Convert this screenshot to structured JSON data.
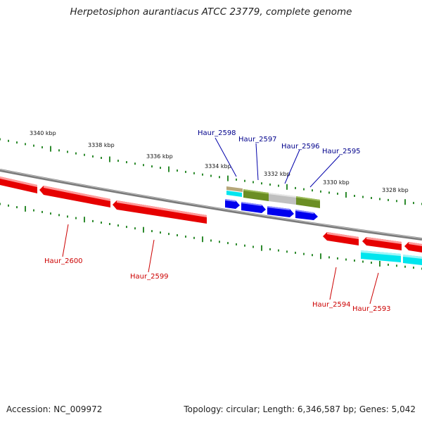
{
  "title": "Herpetosiphon aurantiacus ATCC 23779, complete genome",
  "footer": {
    "accession": "Accession: NC_009972",
    "stats": "Topology: circular; Length: 6,346,587 bp; Genes: 5,042"
  },
  "colors": {
    "backbone": "#7a7a7a",
    "tick": "#2e8b2e",
    "forward_cds": "#e60000",
    "reverse_cds_label": "#cc0000",
    "forward_label": "#00008b",
    "gene_blue": "#0000ee",
    "gene_cyan": "#00e5ee",
    "gene_olive": "#6b8e23",
    "gene_grey": "#c0c0c0",
    "gene_tan": "#b5a77a"
  },
  "scale_labels": [
    "3340 kbp",
    "3338 kbp",
    "3336 kbp",
    "3334 kbp",
    "3332 kbp",
    "3330 kbp",
    "3328 kbp"
  ],
  "gene_labels_top": [
    "Haur_2598",
    "Haur_2597",
    "Haur_2596",
    "Haur_2595"
  ],
  "gene_labels_bottom": [
    "Haur_2600",
    "Haur_2599",
    "Haur_2594",
    "Haur_2593"
  ]
}
